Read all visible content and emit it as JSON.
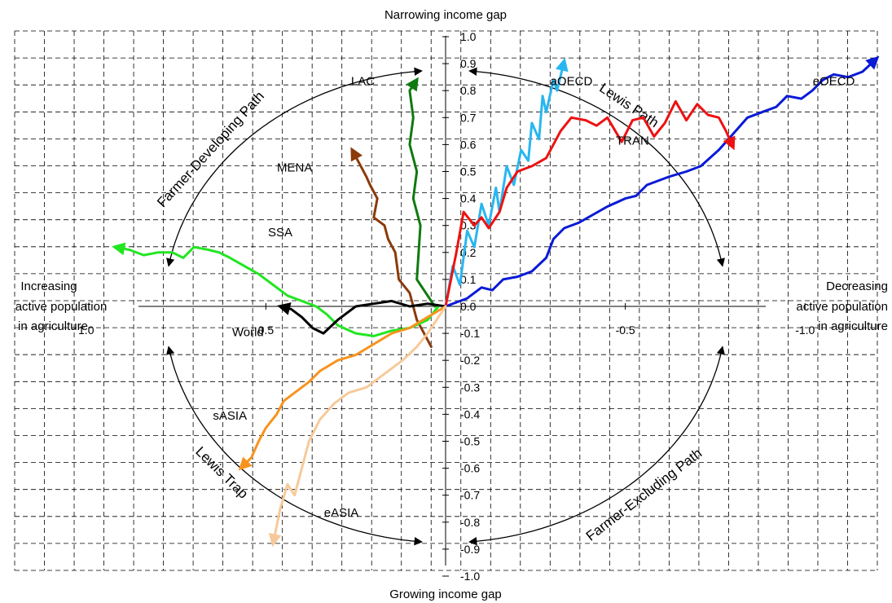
{
  "chart_data": {
    "type": "line",
    "labels": {
      "top": "Narrowing income gap",
      "bottom": "Growing income gap",
      "left": [
        "Increasing",
        "active population",
        "in agriculture"
      ],
      "right": [
        "Decreasing",
        "active population",
        "in agriculture"
      ]
    },
    "y_ticks": [
      "1.0",
      "0.9",
      "0.8",
      "0.7",
      "0.6",
      "0.5",
      "0.4",
      "0.3",
      "0.2",
      "0.1",
      "0.0",
      "-0.1",
      "-0.2",
      "-0.3",
      "-0.4",
      "-0.5",
      "-0.6",
      "-0.7",
      "-0.8",
      "-0.9",
      "-1.0"
    ],
    "y_tick_values": [
      1.0,
      0.9,
      0.8,
      0.7,
      0.6,
      0.5,
      0.4,
      0.3,
      0.2,
      0.1,
      0.0,
      -0.1,
      -0.2,
      -0.3,
      -0.4,
      -0.5,
      -0.6,
      -0.7,
      -0.8,
      -0.9,
      -1.0
    ],
    "x_ticks": [
      {
        "label": "1.0",
        "x": -1.0
      },
      {
        "label": "0.5",
        "x": -0.5
      },
      {
        "label": "0.0",
        "x": 0.0
      },
      {
        "label": "-0.5",
        "x": 0.5
      },
      {
        "label": "-1.0",
        "x": 1.0
      }
    ],
    "xlim": [
      -1.2,
      1.2
    ],
    "ylim": [
      -1.0,
      1.0
    ],
    "grid": true,
    "paths": [
      {
        "label": "Farmer-Developing Path",
        "from_deg": 170,
        "to_deg": 95,
        "label_deg": 142
      },
      {
        "label": "Lewis Path",
        "from_deg": 85,
        "to_deg": 10,
        "label_deg": 52
      },
      {
        "label": "Lewis Trap",
        "from_deg": 190,
        "to_deg": 265,
        "label_deg": 221
      },
      {
        "label": "Farmer-Excluding Path",
        "from_deg": 350,
        "to_deg": 275,
        "label_deg": 312
      }
    ],
    "series": [
      {
        "name": "eOECD",
        "color": "#0a1ad6",
        "points": [
          [
            0,
            0
          ],
          [
            0.06,
            0.03
          ],
          [
            0.1,
            0.07
          ],
          [
            0.13,
            0.06
          ],
          [
            0.16,
            0.1
          ],
          [
            0.2,
            0.11
          ],
          [
            0.24,
            0.13
          ],
          [
            0.28,
            0.18
          ],
          [
            0.3,
            0.25
          ],
          [
            0.33,
            0.29
          ],
          [
            0.37,
            0.31
          ],
          [
            0.41,
            0.34
          ],
          [
            0.45,
            0.37
          ],
          [
            0.5,
            0.4
          ],
          [
            0.53,
            0.41
          ],
          [
            0.56,
            0.45
          ],
          [
            0.62,
            0.48
          ],
          [
            0.67,
            0.5
          ],
          [
            0.71,
            0.52
          ],
          [
            0.76,
            0.58
          ],
          [
            0.8,
            0.64
          ],
          [
            0.84,
            0.7
          ],
          [
            0.88,
            0.72
          ],
          [
            0.92,
            0.74
          ],
          [
            0.95,
            0.78
          ],
          [
            0.99,
            0.77
          ],
          [
            1.02,
            0.8
          ],
          [
            1.05,
            0.84
          ],
          [
            1.08,
            0.86
          ],
          [
            1.12,
            0.85
          ],
          [
            1.16,
            0.87
          ],
          [
            1.2,
            0.92
          ]
        ]
      },
      {
        "name": "aOECD",
        "color": "#29b6f0",
        "points": [
          [
            0,
            0
          ],
          [
            0.02,
            0.15
          ],
          [
            0.04,
            0.08
          ],
          [
            0.06,
            0.28
          ],
          [
            0.08,
            0.22
          ],
          [
            0.1,
            0.38
          ],
          [
            0.12,
            0.3
          ],
          [
            0.14,
            0.44
          ],
          [
            0.15,
            0.35
          ],
          [
            0.17,
            0.52
          ],
          [
            0.19,
            0.45
          ],
          [
            0.21,
            0.58
          ],
          [
            0.23,
            0.54
          ],
          [
            0.24,
            0.68
          ],
          [
            0.26,
            0.62
          ],
          [
            0.27,
            0.78
          ],
          [
            0.28,
            0.72
          ],
          [
            0.3,
            0.84
          ],
          [
            0.31,
            0.8
          ],
          [
            0.33,
            0.91
          ]
        ]
      },
      {
        "name": "TRAN",
        "color": "#ee1111",
        "points": [
          [
            0,
            0
          ],
          [
            0.03,
            0.2
          ],
          [
            0.05,
            0.35
          ],
          [
            0.08,
            0.3
          ],
          [
            0.1,
            0.33
          ],
          [
            0.12,
            0.29
          ],
          [
            0.15,
            0.35
          ],
          [
            0.17,
            0.44
          ],
          [
            0.2,
            0.5
          ],
          [
            0.24,
            0.52
          ],
          [
            0.28,
            0.55
          ],
          [
            0.32,
            0.65
          ],
          [
            0.35,
            0.7
          ],
          [
            0.39,
            0.69
          ],
          [
            0.42,
            0.67
          ],
          [
            0.45,
            0.7
          ],
          [
            0.49,
            0.61
          ],
          [
            0.52,
            0.69
          ],
          [
            0.55,
            0.7
          ],
          [
            0.58,
            0.63
          ],
          [
            0.61,
            0.68
          ],
          [
            0.64,
            0.76
          ],
          [
            0.67,
            0.69
          ],
          [
            0.7,
            0.75
          ],
          [
            0.73,
            0.71
          ],
          [
            0.76,
            0.7
          ],
          [
            0.78,
            0.65
          ],
          [
            0.8,
            0.59
          ]
        ]
      },
      {
        "name": "LAC",
        "color": "#0f7a0f",
        "points": [
          [
            -0.03,
            0.0
          ],
          [
            -0.08,
            0.1
          ],
          [
            -0.07,
            0.3
          ],
          [
            -0.09,
            0.4
          ],
          [
            -0.08,
            0.5
          ],
          [
            -0.1,
            0.6
          ],
          [
            -0.09,
            0.7
          ],
          [
            -0.1,
            0.8
          ],
          [
            -0.08,
            0.84
          ]
        ]
      },
      {
        "name": "MENA",
        "color": "#8b3a0a",
        "points": [
          [
            -0.04,
            -0.15
          ],
          [
            -0.08,
            -0.05
          ],
          [
            -0.1,
            0.05
          ],
          [
            -0.13,
            0.1
          ],
          [
            -0.14,
            0.2
          ],
          [
            -0.16,
            0.25
          ],
          [
            -0.17,
            0.3
          ],
          [
            -0.2,
            0.33
          ],
          [
            -0.19,
            0.4
          ],
          [
            -0.21,
            0.45
          ],
          [
            -0.22,
            0.48
          ],
          [
            -0.24,
            0.53
          ],
          [
            -0.26,
            0.58
          ]
        ]
      },
      {
        "name": "SSA",
        "color": "#22e622",
        "points": [
          [
            -0.02,
            0.0
          ],
          [
            -0.05,
            -0.05
          ],
          [
            -0.1,
            -0.08
          ],
          [
            -0.15,
            -0.09
          ],
          [
            -0.2,
            -0.11
          ],
          [
            -0.25,
            -0.1
          ],
          [
            -0.3,
            -0.07
          ],
          [
            -0.33,
            -0.03
          ],
          [
            -0.36,
            0.0
          ],
          [
            -0.4,
            0.02
          ],
          [
            -0.44,
            0.04
          ],
          [
            -0.48,
            0.08
          ],
          [
            -0.52,
            0.12
          ],
          [
            -0.56,
            0.15
          ],
          [
            -0.6,
            0.18
          ],
          [
            -0.63,
            0.2
          ],
          [
            -0.66,
            0.21
          ],
          [
            -0.7,
            0.22
          ],
          [
            -0.73,
            0.18
          ],
          [
            -0.76,
            0.2
          ],
          [
            -0.8,
            0.2
          ],
          [
            -0.84,
            0.19
          ],
          [
            -0.88,
            0.21
          ],
          [
            -0.92,
            0.22
          ]
        ]
      },
      {
        "name": "World",
        "color": "#000000",
        "points": [
          [
            0,
            0
          ],
          [
            -0.05,
            0.01
          ],
          [
            -0.1,
            0.0
          ],
          [
            -0.15,
            0.02
          ],
          [
            -0.2,
            0.01
          ],
          [
            -0.25,
            0.0
          ],
          [
            -0.3,
            -0.05
          ],
          [
            -0.34,
            -0.1
          ],
          [
            -0.37,
            -0.08
          ],
          [
            -0.4,
            -0.04
          ],
          [
            -0.43,
            -0.01
          ],
          [
            -0.46,
            0.0
          ]
        ]
      },
      {
        "name": "sASIA",
        "color": "#f7931e",
        "points": [
          [
            0,
            0
          ],
          [
            -0.05,
            -0.04
          ],
          [
            -0.1,
            -0.08
          ],
          [
            -0.15,
            -0.1
          ],
          [
            -0.2,
            -0.14
          ],
          [
            -0.25,
            -0.18
          ],
          [
            -0.3,
            -0.2
          ],
          [
            -0.35,
            -0.24
          ],
          [
            -0.38,
            -0.28
          ],
          [
            -0.42,
            -0.32
          ],
          [
            -0.45,
            -0.35
          ],
          [
            -0.47,
            -0.4
          ],
          [
            -0.5,
            -0.45
          ],
          [
            -0.52,
            -0.5
          ],
          [
            -0.54,
            -0.56
          ],
          [
            -0.57,
            -0.6
          ]
        ]
      },
      {
        "name": "eASIA",
        "color": "#f7c99a",
        "points": [
          [
            0,
            0
          ],
          [
            -0.05,
            -0.1
          ],
          [
            -0.08,
            -0.15
          ],
          [
            -0.12,
            -0.2
          ],
          [
            -0.18,
            -0.26
          ],
          [
            -0.22,
            -0.3
          ],
          [
            -0.27,
            -0.32
          ],
          [
            -0.31,
            -0.36
          ],
          [
            -0.35,
            -0.42
          ],
          [
            -0.38,
            -0.5
          ],
          [
            -0.4,
            -0.6
          ],
          [
            -0.42,
            -0.7
          ],
          [
            -0.44,
            -0.66
          ],
          [
            -0.46,
            -0.75
          ],
          [
            -0.48,
            -0.88
          ]
        ]
      }
    ],
    "series_labels": [
      {
        "name": "eOECD",
        "x": 1.08,
        "y": 0.82
      },
      {
        "name": "aOECD",
        "x": 0.35,
        "y": 0.82
      },
      {
        "name": "TRAN",
        "x": 0.52,
        "y": 0.6
      },
      {
        "name": "LAC",
        "x": -0.23,
        "y": 0.82
      },
      {
        "name": "MENA",
        "x": -0.42,
        "y": 0.5
      },
      {
        "name": "SSA",
        "x": -0.46,
        "y": 0.26
      },
      {
        "name": "World",
        "x": -0.55,
        "y": -0.11
      },
      {
        "name": "sASIA",
        "x": -0.6,
        "y": -0.42
      },
      {
        "name": "eASIA",
        "x": -0.29,
        "y": -0.78
      }
    ]
  }
}
